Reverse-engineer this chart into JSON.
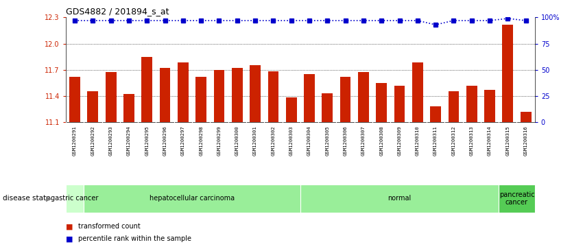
{
  "title": "GDS4882 / 201894_s_at",
  "samples": [
    "GSM1200291",
    "GSM1200292",
    "GSM1200293",
    "GSM1200294",
    "GSM1200295",
    "GSM1200296",
    "GSM1200297",
    "GSM1200298",
    "GSM1200299",
    "GSM1200300",
    "GSM1200301",
    "GSM1200302",
    "GSM1200303",
    "GSM1200304",
    "GSM1200305",
    "GSM1200306",
    "GSM1200307",
    "GSM1200308",
    "GSM1200309",
    "GSM1200310",
    "GSM1200311",
    "GSM1200312",
    "GSM1200313",
    "GSM1200314",
    "GSM1200315",
    "GSM1200316"
  ],
  "transformed_count": [
    11.62,
    11.45,
    11.67,
    11.42,
    11.85,
    11.72,
    11.78,
    11.62,
    11.7,
    11.72,
    11.75,
    11.68,
    11.38,
    11.65,
    11.43,
    11.62,
    11.67,
    11.55,
    11.52,
    11.78,
    11.28,
    11.45,
    11.52,
    11.47,
    12.22,
    11.22
  ],
  "percentile_rank": [
    97,
    97,
    97,
    97,
    97,
    97,
    97,
    97,
    97,
    97,
    97,
    97,
    97,
    97,
    97,
    97,
    97,
    97,
    97,
    97,
    93,
    97,
    97,
    97,
    99,
    97
  ],
  "ylim_left": [
    11.1,
    12.3
  ],
  "ylim_right": [
    0,
    100
  ],
  "yticks_left": [
    11.1,
    11.4,
    11.7,
    12.0,
    12.3
  ],
  "yticks_right": [
    0,
    25,
    50,
    75,
    100
  ],
  "bar_color": "#cc2200",
  "dot_color": "#0000cc",
  "background_color": "#ffffff",
  "xticklabel_bg": "#d4d4d4",
  "disease_groups": [
    {
      "label": "gastric cancer",
      "start": 0,
      "end": 1,
      "color": "#ccffcc"
    },
    {
      "label": "hepatocellular carcinoma",
      "start": 1,
      "end": 13,
      "color": "#99ee99"
    },
    {
      "label": "normal",
      "start": 13,
      "end": 24,
      "color": "#99ee99"
    },
    {
      "label": "pancreatic\ncancer",
      "start": 24,
      "end": 26,
      "color": "#55cc55"
    }
  ]
}
